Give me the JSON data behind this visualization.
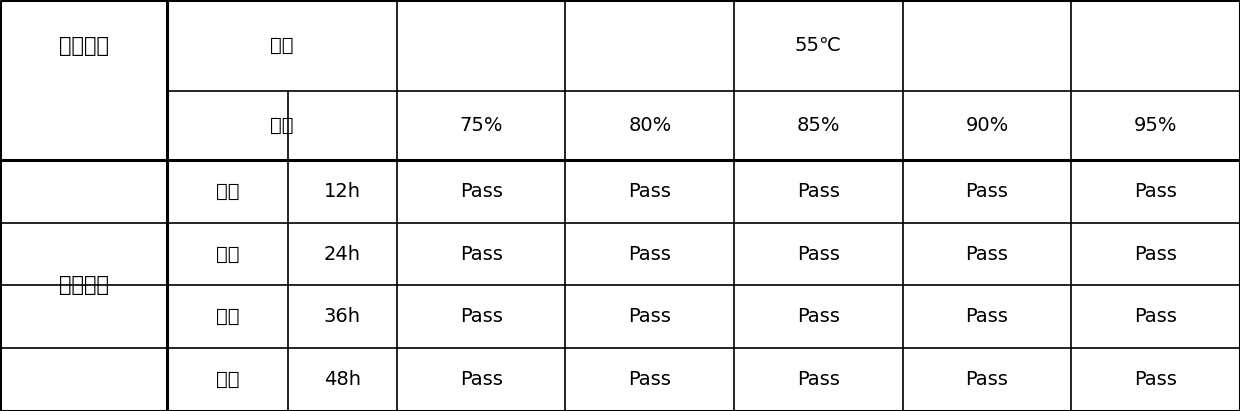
{
  "row_header_label": "实验条件",
  "col_header_top_left": "温度",
  "col_header_top_right": "55℃",
  "col_header_bottom_left": "湿度",
  "humidity_labels": [
    "75%",
    "80%",
    "85%",
    "90%",
    "95%"
  ],
  "material_label": "铝制材料",
  "time_label": "时间",
  "time_values": [
    "12h",
    "24h",
    "36h",
    "48h"
  ],
  "cell_value": "Pass",
  "bg_color": "#ffffff",
  "border_color": "#000000",
  "text_color": "#000000",
  "font_size": 14,
  "lw_thin": 1.2,
  "lw_thick": 2.2
}
